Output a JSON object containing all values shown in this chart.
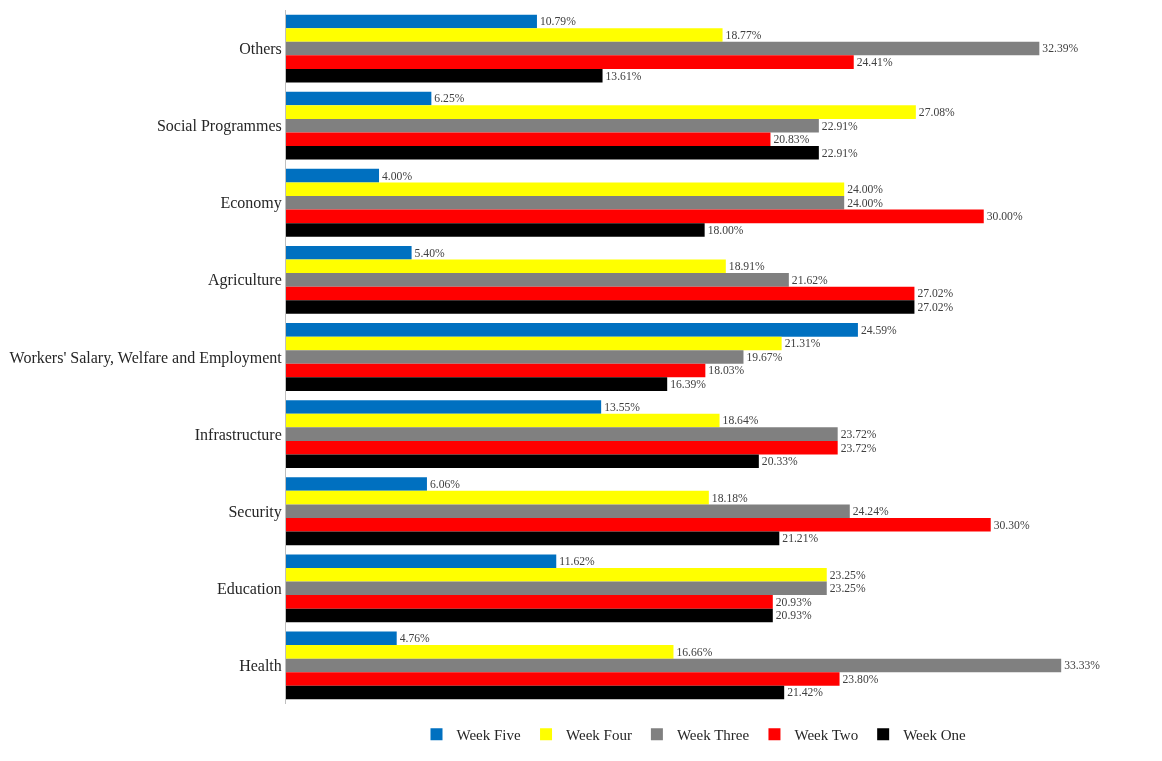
{
  "chart_data": {
    "type": "bar",
    "orientation": "horizontal",
    "tick_labels": "y",
    "legend": "bottom",
    "categories": [
      "Others",
      "Social Programmes",
      "Economy",
      "Agriculture",
      "Workers' Salary, Welfare and Employment",
      "Infrastructure",
      "Security",
      "Education",
      "Health"
    ],
    "series": [
      {
        "name": "Week Five",
        "color": "#0070c0",
        "values": [
          10.79,
          6.25,
          4.0,
          5.4,
          24.59,
          13.55,
          6.06,
          11.62,
          4.76
        ],
        "value_labels": [
          "10.79%",
          "6.25%",
          "4.00%",
          "5.40%",
          "24.59%",
          "13.55%",
          "6.06%",
          "11.62%",
          "4.76%"
        ]
      },
      {
        "name": "Week Four",
        "color": "#ffff00",
        "values": [
          18.77,
          27.08,
          24.0,
          18.91,
          21.31,
          18.64,
          18.18,
          23.25,
          16.66
        ],
        "value_labels": [
          "18.77%",
          "27.08%",
          "24.00%",
          "18.91%",
          "21.31%",
          "18.64%",
          "18.18%",
          "23.25%",
          "16.66%"
        ]
      },
      {
        "name": "Week Three",
        "color": "#808080",
        "values": [
          32.39,
          22.91,
          24.0,
          21.62,
          19.67,
          23.72,
          24.24,
          23.25,
          33.33
        ],
        "value_labels": [
          "32.39%",
          "22.91%",
          "24.00%",
          "21.62%",
          "19.67%",
          "23.72%",
          "24.24%",
          "23.25%",
          "33.33%"
        ]
      },
      {
        "name": "Week Two",
        "color": "#ff0000",
        "values": [
          24.41,
          20.83,
          30.0,
          27.02,
          18.03,
          23.72,
          30.3,
          20.93,
          23.8
        ],
        "value_labels": [
          "24.41%",
          "20.83%",
          "30.00%",
          "27.02%",
          "18.03%",
          "23.72%",
          "30.30%",
          "20.93%",
          "23.80%"
        ]
      },
      {
        "name": "Week One",
        "color": "#000000",
        "values": [
          13.61,
          22.91,
          18.0,
          27.02,
          16.39,
          20.33,
          21.21,
          20.93,
          21.42
        ],
        "value_labels": [
          "13.61%",
          "22.91%",
          "18.00%",
          "27.02%",
          "16.39%",
          "20.33%",
          "21.21%",
          "20.93%",
          "21.42%"
        ]
      }
    ]
  }
}
